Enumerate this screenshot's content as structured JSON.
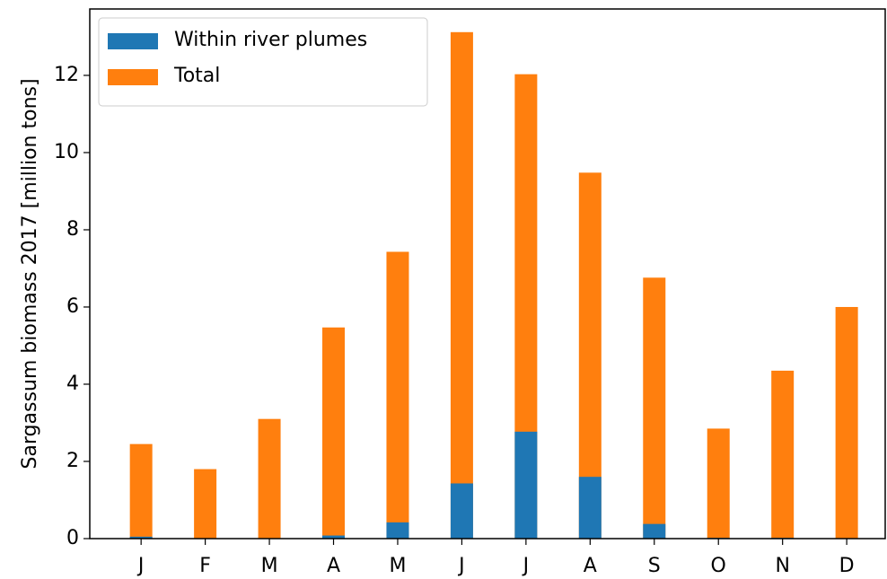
{
  "chart_data": {
    "type": "bar",
    "y_label": "Sargassum biomass 2017 [million tons]",
    "categories": [
      "J",
      "F",
      "M",
      "A",
      "M",
      "J",
      "J",
      "A",
      "S",
      "O",
      "N",
      "D"
    ],
    "series": [
      {
        "name": "Total",
        "color": "#ff7f0e",
        "values": [
          2.45,
          1.8,
          3.1,
          5.47,
          7.43,
          13.12,
          12.03,
          9.48,
          6.76,
          2.85,
          4.35,
          6.0
        ]
      },
      {
        "name": "Within river plumes",
        "color": "#1f77b4",
        "values": [
          0.05,
          0,
          0,
          0.08,
          0.42,
          1.43,
          2.77,
          1.6,
          0.38,
          0.02,
          0.02,
          0
        ]
      }
    ],
    "legend_order": [
      1,
      0
    ],
    "legend_position": "upper left",
    "ylim": [
      0,
      13.72
    ],
    "yticks": [
      0,
      2,
      4,
      6,
      8,
      10,
      12
    ]
  }
}
